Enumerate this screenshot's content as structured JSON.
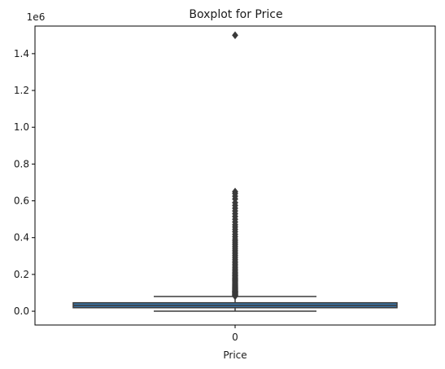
{
  "chart_data": {
    "type": "boxplot",
    "title": "Boxplot for Price",
    "xlabel": "Price",
    "ylabel": "",
    "y_offset_label": "1e6",
    "ylim": [
      -75000,
      1550000
    ],
    "y_ticks": [
      0,
      200000,
      400000,
      600000,
      800000,
      1000000,
      1200000,
      1400000
    ],
    "y_tick_labels": [
      "0.0",
      "0.2",
      "0.4",
      "0.6",
      "0.8",
      "1.0",
      "1.2",
      "1.4"
    ],
    "categories": [
      "0"
    ],
    "box": {
      "whisker_low": 0,
      "q1": 19000,
      "median": 31000,
      "q3": 46000,
      "whisker_high": 80000
    },
    "outliers": [
      82000,
      85000,
      88000,
      90000,
      93000,
      95000,
      98000,
      100000,
      103000,
      105000,
      108000,
      110000,
      113000,
      116000,
      120000,
      124000,
      128000,
      132000,
      136000,
      140000,
      145000,
      150000,
      155000,
      160000,
      165000,
      170000,
      175000,
      180000,
      186000,
      192000,
      198000,
      205000,
      212000,
      220000,
      228000,
      236000,
      245000,
      254000,
      263000,
      272000,
      282000,
      292000,
      302000,
      312000,
      322000,
      332000,
      342000,
      352000,
      362000,
      372000,
      382000,
      392000,
      405000,
      418000,
      432000,
      445000,
      458000,
      470000,
      485000,
      500000,
      515000,
      530000,
      545000,
      560000,
      575000,
      590000,
      610000,
      625000,
      640000,
      650000,
      1500000
    ],
    "colors": {
      "box_fill": "#3a74a6",
      "line": "#3a3a3a",
      "outlier": "#3a3a3a"
    }
  }
}
